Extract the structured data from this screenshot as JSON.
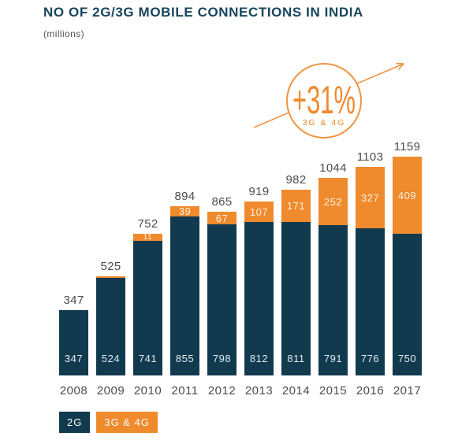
{
  "header": {
    "title": "NO OF 2G/3G MOBILE CONNECTIONS IN INDIA",
    "subtitle": "(millions)"
  },
  "badge": {
    "percent": "+31%",
    "sublabel": "3G & 4G"
  },
  "chart_data": {
    "type": "bar",
    "stacked": true,
    "title": "NO OF 2G/3G MOBILE CONNECTIONS IN INDIA",
    "unit": "(millions)",
    "categories": [
      "2008",
      "2009",
      "2010",
      "2011",
      "2012",
      "2013",
      "2014",
      "2015",
      "2016",
      "2017"
    ],
    "series": [
      {
        "name": "2G",
        "color": "#123a4f",
        "values": [
          347,
          524,
          741,
          855,
          798,
          812,
          811,
          791,
          776,
          750
        ]
      },
      {
        "name": "3G & 4G",
        "color": "#ef8a2d",
        "values": [
          0,
          1,
          11,
          39,
          67,
          107,
          171,
          252,
          327,
          409
        ]
      }
    ],
    "totals": [
      347,
      525,
      752,
      894,
      865,
      919,
      982,
      1044,
      1103,
      1159
    ],
    "value_labels": "inside",
    "total_labels": "above",
    "grid": false,
    "legend_position": "bottom-left",
    "annotation": {
      "text": "+31%",
      "sublabel": "3G & 4G",
      "shape": "circle-with-arrow"
    }
  },
  "legend": {
    "items": [
      {
        "label": "2G",
        "color": "#123a4f"
      },
      {
        "label": "3G & 4G",
        "color": "#ef8a2d"
      }
    ]
  },
  "colors": {
    "navy": "#123a4f",
    "orange": "#ef8a2d",
    "label_gray": "#4d4d4f",
    "title_navy": "#16455c",
    "background": "#ffffff"
  }
}
